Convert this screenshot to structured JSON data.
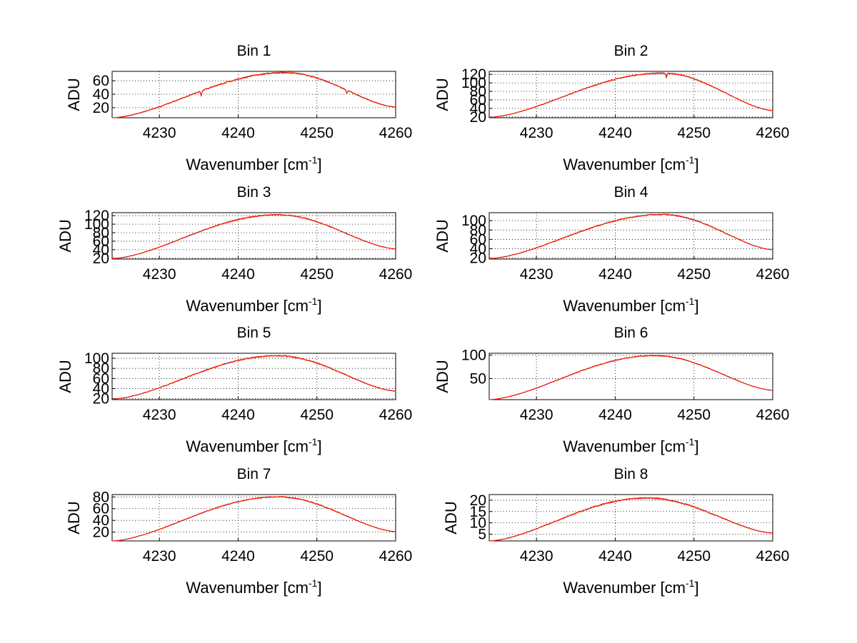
{
  "chart_data": [
    {
      "type": "line",
      "title": "Bin 1",
      "xlabel_main": "Wavenumber [cm",
      "xlabel_sup": "-1",
      "xlabel_close": "]",
      "ylabel": "ADU",
      "xlim": [
        4224,
        4260
      ],
      "ylim": [
        5,
        74
      ],
      "xticks": [
        4230,
        4240,
        4250,
        4260
      ],
      "yticks": [
        20,
        40,
        60
      ],
      "grid": true,
      "peak_x": 4246,
      "peak_y": 72,
      "y_start": 5,
      "y_end": 21,
      "noise": 1.2,
      "dips": [
        [
          4235.3,
          -7
        ],
        [
          4253.8,
          -5
        ]
      ]
    },
    {
      "type": "line",
      "title": "Bin 2",
      "xlabel_main": "Wavenumber [cm",
      "xlabel_sup": "-1",
      "xlabel_close": "]",
      "ylabel": "ADU",
      "xlim": [
        4224,
        4260
      ],
      "ylim": [
        18,
        127
      ],
      "xticks": [
        4230,
        4240,
        4250,
        4260
      ],
      "yticks": [
        20,
        40,
        60,
        80,
        100,
        120
      ],
      "grid": true,
      "peak_x": 4246,
      "peak_y": 123,
      "y_start": 19,
      "y_end": 35,
      "noise": 1.5,
      "dips": [
        [
          4246.5,
          -12
        ]
      ]
    },
    {
      "type": "line",
      "title": "Bin 3",
      "xlabel_main": "Wavenumber [cm",
      "xlabel_sup": "-1",
      "xlabel_close": "]",
      "ylabel": "ADU",
      "xlim": [
        4224,
        4260
      ],
      "ylim": [
        18,
        127
      ],
      "xticks": [
        4230,
        4240,
        4250,
        4260
      ],
      "yticks": [
        20,
        40,
        60,
        80,
        100,
        120
      ],
      "grid": true,
      "peak_x": 4245,
      "peak_y": 122,
      "y_start": 19,
      "y_end": 42,
      "noise": 1.5,
      "dips": []
    },
    {
      "type": "line",
      "title": "Bin 4",
      "xlabel_main": "Wavenumber [cm",
      "xlabel_sup": "-1",
      "xlabel_close": "]",
      "ylabel": "ADU",
      "xlim": [
        4224,
        4260
      ],
      "ylim": [
        18,
        117
      ],
      "xticks": [
        4230,
        4240,
        4250,
        4260
      ],
      "yticks": [
        20,
        40,
        60,
        80,
        100
      ],
      "grid": true,
      "peak_x": 4246,
      "peak_y": 113,
      "y_start": 19,
      "y_end": 38,
      "noise": 1.4,
      "dips": []
    },
    {
      "type": "line",
      "title": "Bin 5",
      "xlabel_main": "Wavenumber [cm",
      "xlabel_sup": "-1",
      "xlabel_close": "]",
      "ylabel": "ADU",
      "xlim": [
        4224,
        4260
      ],
      "ylim": [
        18,
        110
      ],
      "xticks": [
        4230,
        4240,
        4250,
        4260
      ],
      "yticks": [
        20,
        40,
        60,
        80,
        100
      ],
      "grid": true,
      "peak_x": 4245,
      "peak_y": 105,
      "y_start": 19,
      "y_end": 35,
      "noise": 1.4,
      "dips": []
    },
    {
      "type": "line",
      "title": "Bin 6",
      "xlabel_main": "Wavenumber [cm",
      "xlabel_sup": "-1",
      "xlabel_close": "]",
      "ylabel": "ADU",
      "xlim": [
        4224,
        4260
      ],
      "ylim": [
        5,
        104
      ],
      "xticks": [
        4230,
        4240,
        4250,
        4260
      ],
      "yticks": [
        50,
        100
      ],
      "grid": true,
      "peak_x": 4245,
      "peak_y": 99,
      "y_start": 5,
      "y_end": 25,
      "noise": 1.2,
      "dips": []
    },
    {
      "type": "line",
      "title": "Bin 7",
      "xlabel_main": "Wavenumber [cm",
      "xlabel_sup": "-1",
      "xlabel_close": "]",
      "ylabel": "ADU",
      "xlim": [
        4224,
        4260
      ],
      "ylim": [
        5,
        84
      ],
      "xticks": [
        4230,
        4240,
        4250,
        4260
      ],
      "yticks": [
        20,
        40,
        60,
        80
      ],
      "grid": true,
      "peak_x": 4245,
      "peak_y": 80,
      "y_start": 5,
      "y_end": 21,
      "noise": 1.1,
      "dips": []
    },
    {
      "type": "line",
      "title": "Bin 8",
      "xlabel_main": "Wavenumber [cm",
      "xlabel_sup": "-1",
      "xlabel_close": "]",
      "ylabel": "ADU",
      "xlim": [
        4224,
        4260
      ],
      "ylim": [
        2,
        22.5
      ],
      "xticks": [
        4230,
        4240,
        4250,
        4260
      ],
      "yticks": [
        5,
        10,
        15,
        20
      ],
      "grid": true,
      "peak_x": 4244,
      "peak_y": 21,
      "y_start": 2,
      "y_end": 5.5,
      "noise": 0.35,
      "dips": []
    }
  ],
  "series_colors": [
    "#ff0000",
    "#ff8c00",
    "#1e90ff"
  ]
}
